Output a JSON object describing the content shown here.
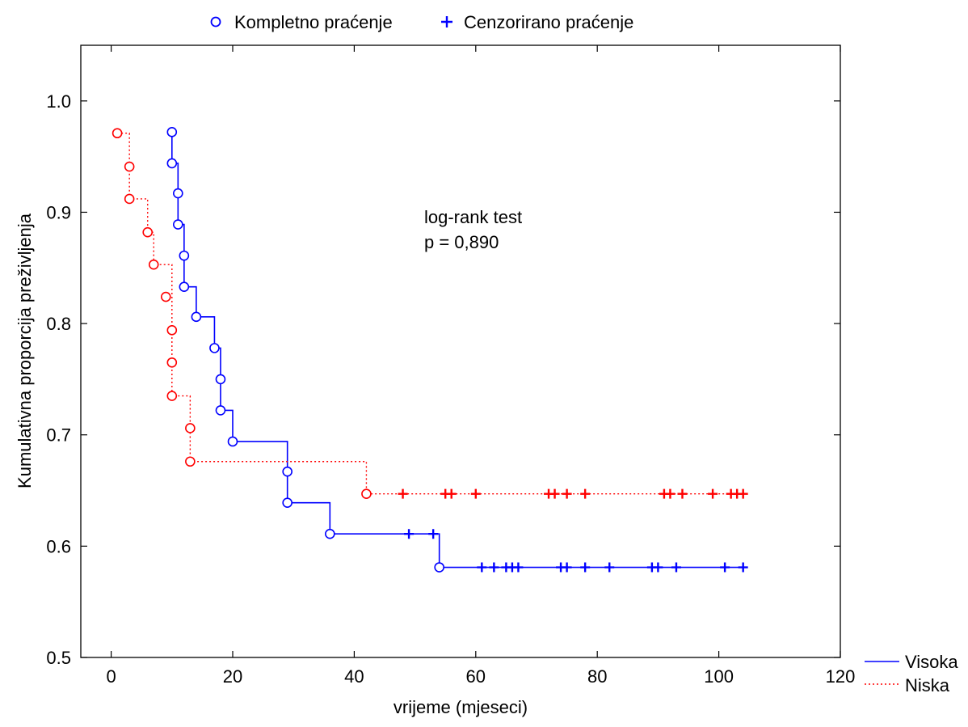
{
  "chart_data": {
    "type": "line",
    "title": "",
    "xlabel": "vrijeme (mjeseci)",
    "ylabel": "Kumulativna proporcija preživljenja",
    "xlim": [
      -5,
      120
    ],
    "ylim": [
      0.5,
      1.05
    ],
    "x_ticks": [
      0,
      20,
      40,
      60,
      80,
      100,
      120
    ],
    "y_ticks": [
      0.5,
      0.6,
      0.7,
      0.8,
      0.9,
      1.0
    ],
    "x_tick_labels": [
      "0",
      "20",
      "40",
      "60",
      "80",
      "100",
      "120"
    ],
    "y_tick_labels": [
      "0.5",
      "0.6",
      "0.7",
      "0.8",
      "0.9",
      "1.0"
    ],
    "grid": false,
    "annotation": {
      "line1": "log-rank test",
      "line2": "p = 0,890",
      "x": 51,
      "y": 0.9
    },
    "marker_legend": {
      "complete_label": "Kompletno praćenje",
      "censored_label": "Cenzorirano praćenje",
      "placement": "top-center"
    },
    "series_legend_placement": "bottom-right",
    "series": [
      {
        "name": "Visoka",
        "color": "#0000ff",
        "style": "solid",
        "steps": [
          [
            0,
            1.0
          ],
          [
            10,
            0.944
          ],
          [
            11,
            0.889
          ],
          [
            12,
            0.833
          ],
          [
            14,
            0.806
          ],
          [
            17,
            0.778
          ],
          [
            18,
            0.722
          ],
          [
            20,
            0.694
          ],
          [
            29,
            0.639
          ],
          [
            36,
            0.611
          ],
          [
            54,
            0.581
          ],
          [
            104,
            0.581
          ]
        ],
        "complete": [
          [
            10,
            0.972
          ],
          [
            10,
            0.944
          ],
          [
            11,
            0.917
          ],
          [
            11,
            0.889
          ],
          [
            12,
            0.861
          ],
          [
            12,
            0.833
          ],
          [
            14,
            0.806
          ],
          [
            17,
            0.778
          ],
          [
            18,
            0.75
          ],
          [
            18,
            0.722
          ],
          [
            20,
            0.694
          ],
          [
            29,
            0.667
          ],
          [
            29,
            0.639
          ],
          [
            36,
            0.611
          ],
          [
            54,
            0.581
          ]
        ],
        "censored": [
          [
            49,
            0.611
          ],
          [
            53,
            0.611
          ],
          [
            61,
            0.581
          ],
          [
            63,
            0.581
          ],
          [
            65,
            0.581
          ],
          [
            66,
            0.581
          ],
          [
            67,
            0.581
          ],
          [
            74,
            0.581
          ],
          [
            75,
            0.581
          ],
          [
            78,
            0.581
          ],
          [
            82,
            0.581
          ],
          [
            89,
            0.581
          ],
          [
            90,
            0.581
          ],
          [
            93,
            0.581
          ],
          [
            101,
            0.581
          ],
          [
            104,
            0.581
          ]
        ]
      },
      {
        "name": "Niska",
        "color": "#ff0000",
        "style": "dotted",
        "steps": [
          [
            0,
            1.0
          ],
          [
            1,
            0.971
          ],
          [
            3,
            0.912
          ],
          [
            6,
            0.882
          ],
          [
            7,
            0.853
          ],
          [
            10,
            0.735
          ],
          [
            12,
            0.735
          ],
          [
            13,
            0.676
          ],
          [
            42,
            0.647
          ],
          [
            104,
            0.647
          ]
        ],
        "complete": [
          [
            1,
            0.971
          ],
          [
            3,
            0.941
          ],
          [
            3,
            0.912
          ],
          [
            6,
            0.882
          ],
          [
            7,
            0.853
          ],
          [
            9,
            0.824
          ],
          [
            10,
            0.794
          ],
          [
            10,
            0.765
          ],
          [
            10,
            0.735
          ],
          [
            13,
            0.706
          ],
          [
            13,
            0.676
          ],
          [
            42,
            0.647
          ]
        ],
        "censored": [
          [
            48,
            0.647
          ],
          [
            55,
            0.647
          ],
          [
            56,
            0.647
          ],
          [
            60,
            0.647
          ],
          [
            72,
            0.647
          ],
          [
            73,
            0.647
          ],
          [
            75,
            0.647
          ],
          [
            78,
            0.647
          ],
          [
            91,
            0.647
          ],
          [
            92,
            0.647
          ],
          [
            94,
            0.647
          ],
          [
            99,
            0.647
          ],
          [
            102,
            0.647
          ],
          [
            103,
            0.647
          ],
          [
            104,
            0.647
          ]
        ]
      }
    ]
  }
}
